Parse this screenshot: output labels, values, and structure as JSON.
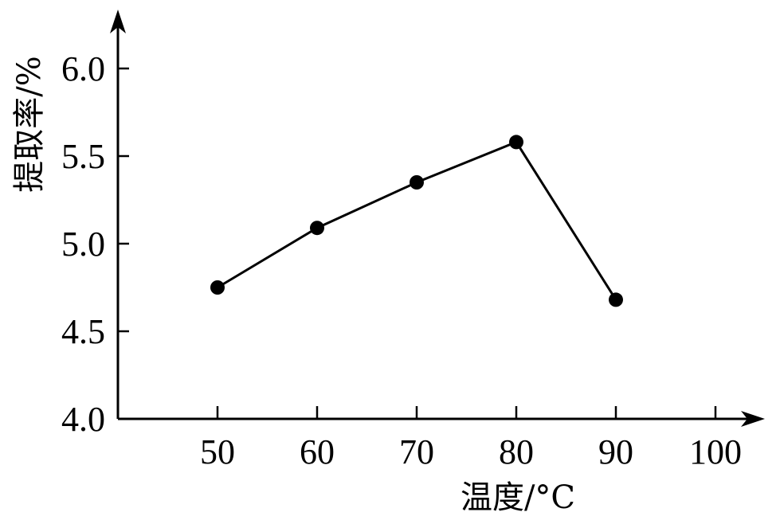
{
  "chart_data": {
    "type": "line",
    "title": "",
    "xlabel": "温度/°C",
    "ylabel": "提取率/%",
    "x_ticks": [
      50,
      60,
      70,
      80,
      90,
      100
    ],
    "y_ticks": [
      "4.0",
      "4.5",
      "5.0",
      "5.5",
      "6.0"
    ],
    "xlim": [
      40,
      105
    ],
    "ylim": [
      4.0,
      6.35
    ],
    "grid": false,
    "series": [
      {
        "x": [
          50,
          60,
          70,
          80,
          90
        ],
        "y": [
          4.75,
          5.09,
          5.35,
          5.58,
          4.68
        ]
      }
    ]
  }
}
